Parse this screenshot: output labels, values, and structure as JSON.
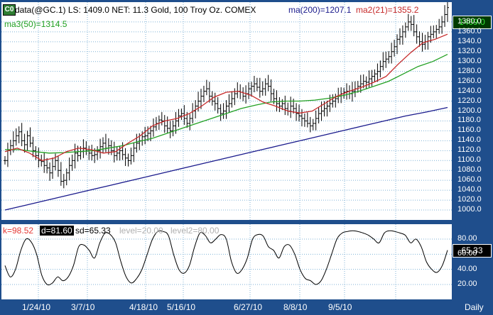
{
  "header": {
    "symbol_badge": "C0",
    "title": "data(@GC.1) LS: 1409.0  NET: 11.3   Gold, 100 Troy Oz. COMEX",
    "ma1": "ma(200)=1207.1",
    "ma2": "ma2(21)=1355.2",
    "ma3": "ma3(50)=1314.5"
  },
  "osc_header": {
    "k": "k=98.52",
    "d": "d=81.60",
    "sd": "sd=65.33",
    "level1": "level=20.00",
    "level2": "level2=80.00"
  },
  "badges": {
    "price": "1409.0",
    "osc": "65.33"
  },
  "footer": {
    "period": "Daily"
  },
  "colors": {
    "frame": "#1f4e8c",
    "panel": "#ffffff",
    "grid": "#7fb2d6",
    "bars": "#000000",
    "ma200": "#1a1a8c",
    "ma21": "#c62828",
    "ma50": "#22a022",
    "osc": "#000000",
    "price_badge_bg": "#003a00",
    "price_badge_fg": "#35e035"
  },
  "chart_data": [
    {
      "type": "line",
      "subtype": "ohlc",
      "title": "Gold, 100 Troy Oz. COMEX",
      "x_ticks": [
        "1/24/10",
        "3/7/10",
        "4/18/10",
        "5/16/10",
        "6/27/10",
        "8/8/10",
        "9/5/10"
      ],
      "ylim": [
        980,
        1420
      ],
      "y_ticks": [
        1000,
        1020,
        1040,
        1060,
        1080,
        1100,
        1120,
        1140,
        1160,
        1180,
        1200,
        1220,
        1240,
        1260,
        1280,
        1300,
        1320,
        1340,
        1360,
        1380
      ],
      "grid": true,
      "last_value": 1409.0,
      "series": [
        {
          "name": "data(@GC.1)",
          "values": [
            1100,
            1120,
            1130,
            1140,
            1150,
            1158,
            1140,
            1132,
            1150,
            1135,
            1120,
            1110,
            1100,
            1098,
            1090,
            1085,
            1075,
            1088,
            1100,
            1080,
            1058,
            1060,
            1075,
            1090,
            1100,
            1115,
            1110,
            1118,
            1125,
            1120,
            1115,
            1110,
            1112,
            1120,
            1128,
            1135,
            1125,
            1130,
            1120,
            1110,
            1115,
            1120,
            1112,
            1105,
            1100,
            1110,
            1125,
            1135,
            1140,
            1148,
            1150,
            1155,
            1160,
            1168,
            1175,
            1182,
            1180,
            1170,
            1165,
            1160,
            1170,
            1180,
            1190,
            1195,
            1185,
            1175,
            1185,
            1200,
            1210,
            1220,
            1230,
            1240,
            1245,
            1230,
            1220,
            1215,
            1205,
            1195,
            1200,
            1210,
            1215,
            1225,
            1235,
            1240,
            1238,
            1230,
            1235,
            1245,
            1250,
            1255,
            1248,
            1240,
            1245,
            1255,
            1250,
            1235,
            1225,
            1215,
            1210,
            1215,
            1205,
            1200,
            1210,
            1205,
            1195,
            1190,
            1185,
            1180,
            1175,
            1170,
            1175,
            1185,
            1195,
            1200,
            1205,
            1210,
            1215,
            1220,
            1225,
            1230,
            1235,
            1238,
            1240,
            1235,
            1240,
            1245,
            1250,
            1255,
            1260,
            1258,
            1265,
            1270,
            1275,
            1280,
            1290,
            1300,
            1305,
            1310,
            1320,
            1330,
            1345,
            1350,
            1360,
            1370,
            1380,
            1375,
            1360,
            1350,
            1340,
            1335,
            1340,
            1350,
            1355,
            1360,
            1365,
            1370,
            1380,
            1395,
            1409
          ]
        },
        {
          "name": "ma(200)",
          "values": [
            1000,
            1010,
            1020,
            1030,
            1040,
            1050,
            1060,
            1070,
            1080,
            1090,
            1100,
            1110,
            1120,
            1130,
            1140,
            1150,
            1160,
            1170,
            1180,
            1190,
            1198,
            1207.1
          ]
        },
        {
          "name": "ma2(21)",
          "values": [
            1118,
            1125,
            1115,
            1100,
            1105,
            1118,
            1125,
            1122,
            1115,
            1118,
            1135,
            1150,
            1170,
            1180,
            1185,
            1195,
            1210,
            1228,
            1238,
            1240,
            1232,
            1218,
            1210,
            1200,
            1196,
            1200,
            1215,
            1230,
            1240,
            1248,
            1258,
            1270,
            1295,
            1318,
            1338,
            1345,
            1355.2
          ]
        },
        {
          "name": "ma3(50)",
          "values": [
            1122,
            1122,
            1118,
            1115,
            1116,
            1118,
            1120,
            1125,
            1130,
            1138,
            1145,
            1155,
            1165,
            1175,
            1185,
            1195,
            1205,
            1212,
            1218,
            1220,
            1220,
            1222,
            1226,
            1232,
            1240,
            1250,
            1260,
            1275,
            1290,
            1300,
            1314.5
          ]
        }
      ]
    },
    {
      "type": "line",
      "subtype": "stochastic",
      "ylim": [
        0,
        100
      ],
      "y_ticks": [
        20,
        40,
        60,
        80
      ],
      "x_ticks": [
        "1/24/10",
        "3/7/10",
        "4/18/10",
        "5/16/10",
        "6/27/10",
        "8/8/10",
        "9/5/10"
      ],
      "grid": true,
      "last_value": 65.33,
      "series": [
        {
          "name": "sd",
          "values": [
            45,
            30,
            40,
            65,
            80,
            76,
            60,
            32,
            20,
            22,
            30,
            25,
            30,
            45,
            70,
            72,
            65,
            55,
            75,
            88,
            86,
            75,
            50,
            30,
            22,
            28,
            40,
            60,
            80,
            90,
            90,
            85,
            60,
            40,
            35,
            45,
            70,
            88,
            85,
            75,
            80,
            86,
            80,
            50,
            35,
            40,
            55,
            80,
            86,
            84,
            70,
            65,
            55,
            70,
            72,
            60,
            40,
            28,
            25,
            20,
            25,
            40,
            60,
            80,
            88,
            90,
            91,
            90,
            88,
            85,
            80,
            75,
            88,
            91,
            90,
            88,
            85,
            75,
            80,
            70,
            50,
            40,
            36,
            45,
            65.33
          ]
        }
      ]
    }
  ]
}
